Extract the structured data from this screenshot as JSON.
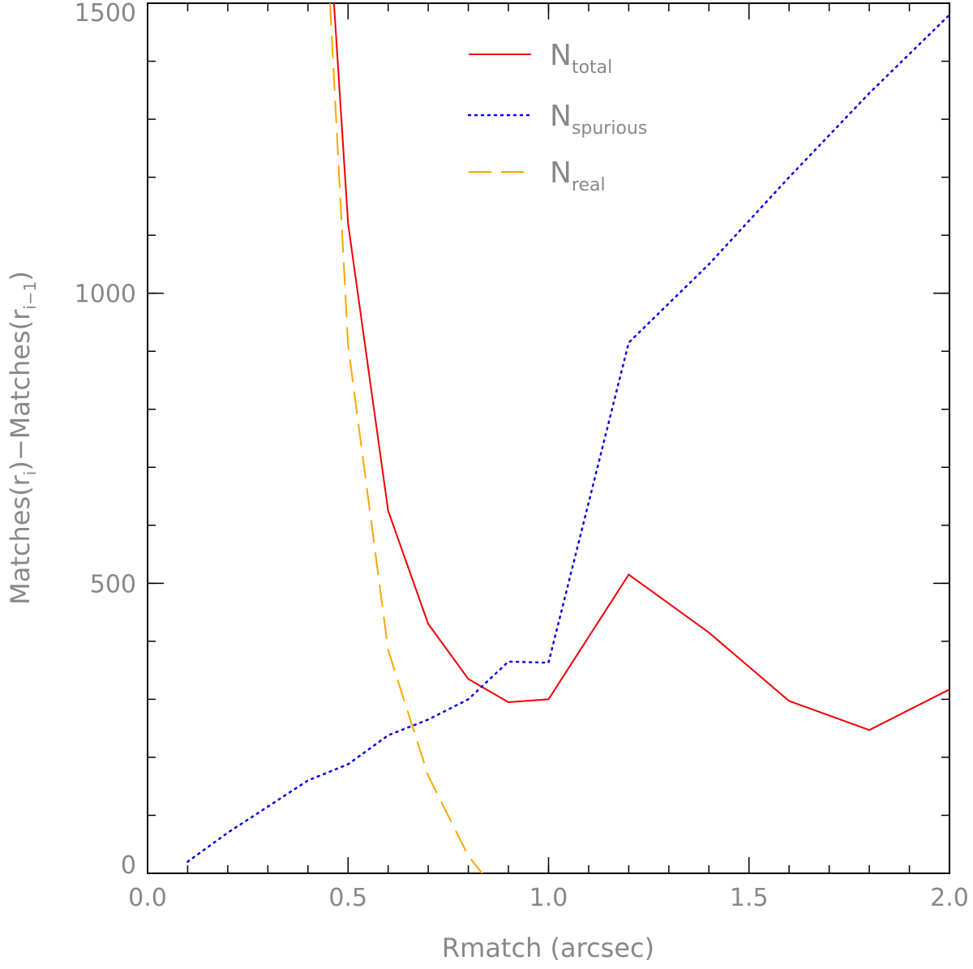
{
  "chart_data": {
    "type": "line",
    "xlabel": "Rmatch (arcsec)",
    "ylabel": "Matches(r",
    "ylabel_sub1": "i",
    "ylabel_mid": ")−Matches(r",
    "ylabel_sub2": "i−1",
    "ylabel_end": ")",
    "xlim": [
      0.0,
      2.0
    ],
    "ylim": [
      0,
      1500
    ],
    "x_ticks": [
      0.0,
      0.5,
      1.0,
      1.5,
      2.0
    ],
    "x_tick_labels": [
      "0.0",
      "0.5",
      "1.0",
      "1.5",
      "2.0"
    ],
    "y_ticks": [
      0,
      500,
      1000,
      1500
    ],
    "y_tick_labels": [
      "0",
      "500",
      "1000",
      "1500"
    ],
    "x_minor_step": 0.1,
    "y_minor_step": 100,
    "grid": false,
    "legend_position": "top-center",
    "series": [
      {
        "name": "N",
        "name_sub": "total",
        "color": "#ee0000",
        "style": "solid",
        "x": [
          0.465,
          0.5,
          0.6,
          0.7,
          0.8,
          0.9,
          1.0,
          1.2,
          1.4,
          1.6,
          1.8,
          2.0
        ],
        "y": [
          1500,
          1120,
          625,
          430,
          335,
          295,
          300,
          515,
          415,
          297,
          247,
          317
        ]
      },
      {
        "name": "N",
        "name_sub": "spurious",
        "color": "#0000ee",
        "style": "dotted",
        "x": [
          0.1,
          0.2,
          0.3,
          0.4,
          0.5,
          0.6,
          0.7,
          0.8,
          0.9,
          1.0,
          1.2,
          1.4,
          1.6,
          1.8,
          2.0
        ],
        "y": [
          20,
          70,
          115,
          160,
          188,
          238,
          265,
          300,
          365,
          363,
          915,
          1050,
          1200,
          1345,
          1480
        ]
      },
      {
        "name": "N",
        "name_sub": "real",
        "color": "#ffa500",
        "style": "dashed",
        "x": [
          0.455,
          0.5,
          0.6,
          0.7,
          0.8,
          0.84
        ],
        "y": [
          1500,
          910,
          385,
          168,
          30,
          -5
        ]
      }
    ]
  }
}
